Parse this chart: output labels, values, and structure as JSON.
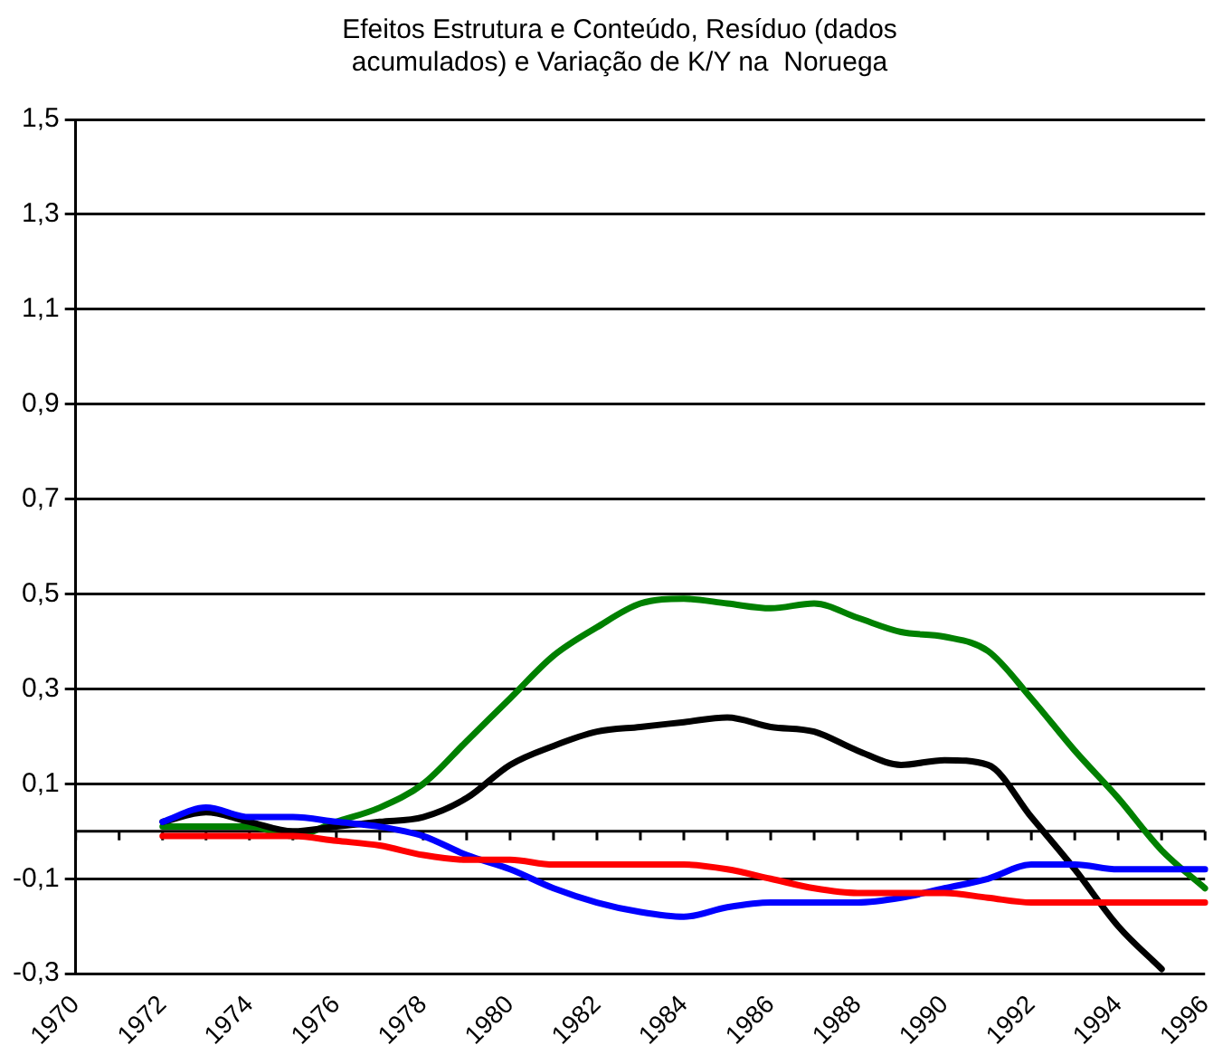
{
  "chart_data": {
    "type": "line",
    "title": "Efeitos Estrutura e Conteúdo, Resíduo (dados acumulados) e Variação de K/Y na  Noruega",
    "categories": [
      "1970",
      null,
      "1972",
      null,
      "1974",
      null,
      "1976",
      null,
      "1978",
      null,
      "1980",
      null,
      "1982",
      null,
      "1984",
      null,
      "1986",
      null,
      "1988",
      null,
      "1990",
      null,
      "1992",
      null,
      "1994",
      null,
      "1996"
    ],
    "series": [
      {
        "color": "#008000",
        "values": [
          null,
          null,
          0.01,
          0.01,
          0.01,
          -0.01,
          0.02,
          0.05,
          0.1,
          0.19,
          0.28,
          0.37,
          0.43,
          0.48,
          0.49,
          0.48,
          0.47,
          0.48,
          0.45,
          0.42,
          0.41,
          0.38,
          0.28,
          0.17,
          0.07,
          -0.04,
          -0.12
        ]
      },
      {
        "color": "#000000",
        "values": [
          null,
          null,
          0.02,
          0.04,
          0.02,
          0,
          0.01,
          0.02,
          0.03,
          0.07,
          0.14,
          0.18,
          0.21,
          0.22,
          0.23,
          0.24,
          0.22,
          0.21,
          0.17,
          0.14,
          0.15,
          0.14,
          0.03,
          -0.08,
          -0.2,
          -0.29,
          null
        ]
      },
      {
        "color": "#0000ff",
        "values": [
          null,
          null,
          0.02,
          0.05,
          0.03,
          0.03,
          0.02,
          0.01,
          -0.01,
          -0.05,
          -0.08,
          -0.12,
          -0.15,
          -0.17,
          -0.18,
          -0.16,
          -0.15,
          -0.15,
          -0.15,
          -0.14,
          -0.12,
          -0.1,
          -0.07,
          -0.07,
          -0.08,
          -0.08,
          -0.08
        ]
      },
      {
        "color": "#ff0000",
        "values": [
          null,
          null,
          -0.01,
          -0.01,
          -0.01,
          -0.01,
          -0.02,
          -0.03,
          -0.05,
          -0.06,
          -0.06,
          -0.07,
          -0.07,
          -0.07,
          -0.07,
          -0.08,
          -0.1,
          -0.12,
          -0.13,
          -0.13,
          -0.13,
          -0.14,
          -0.15,
          -0.15,
          -0.15,
          -0.15,
          -0.15
        ]
      }
    ],
    "ylim": [
      -0.3,
      1.5
    ],
    "yticks": [
      {
        "value": -0.3,
        "label": "-0,3"
      },
      {
        "value": -0.1,
        "label": "-0,1"
      },
      {
        "value": 0.1,
        "label": "0,1"
      },
      {
        "value": 0.3,
        "label": "0,3"
      },
      {
        "value": 0.5,
        "label": "0,5"
      },
      {
        "value": 0.7,
        "label": "0,7"
      },
      {
        "value": 0.9,
        "label": "0,9"
      },
      {
        "value": 1.1,
        "label": "1,1"
      },
      {
        "value": 1.3,
        "label": "1,3"
      },
      {
        "value": 1.5,
        "label": "1,5"
      }
    ],
    "ref_lines": [
      {
        "axis": "y",
        "value": 0,
        "color": "#000000"
      }
    ],
    "grid": "y",
    "legend": false,
    "marker": "none",
    "line_style": "solid"
  }
}
